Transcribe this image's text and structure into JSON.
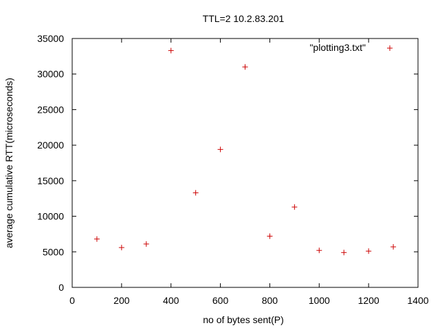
{
  "chart_data": {
    "type": "scatter",
    "title": "TTL=2 10.2.83.201",
    "xlabel": "no of bytes sent(P)",
    "ylabel": "average cumulative RTT(microseconds)",
    "xlim": [
      0,
      1400
    ],
    "ylim": [
      0,
      35000
    ],
    "x_ticks": [
      0,
      200,
      400,
      600,
      800,
      1000,
      1200,
      1400
    ],
    "y_ticks": [
      0,
      5000,
      10000,
      15000,
      20000,
      25000,
      30000,
      35000
    ],
    "grid": false,
    "legend_position": "top-right",
    "series": [
      {
        "name": "\"plotting3.txt\"",
        "color": "#cc0000",
        "marker": "plus",
        "x": [
          100,
          200,
          300,
          400,
          500,
          600,
          700,
          800,
          900,
          1000,
          1100,
          1200,
          1300
        ],
        "y": [
          6800,
          5600,
          6100,
          33300,
          13300,
          19400,
          31000,
          7200,
          11300,
          5200,
          4900,
          5100,
          5700
        ]
      }
    ]
  }
}
